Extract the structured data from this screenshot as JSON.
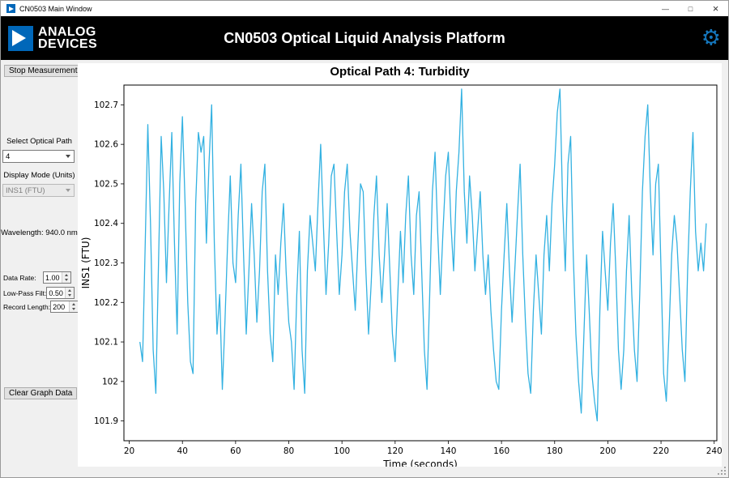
{
  "window": {
    "title": "CN0503 Main Window",
    "controls": {
      "minimize": "—",
      "maximize": "□",
      "close": "×"
    }
  },
  "icons": {
    "settings_gear": "⚙"
  },
  "header": {
    "brand_line1": "ANALOG",
    "brand_line2": "DEVICES",
    "title": "CN0503 Optical Liquid Analysis Platform"
  },
  "sidebar": {
    "stop_button": "Stop Measurement",
    "optical_path_label": "Select Optical Path",
    "optical_path_value": "4",
    "display_mode_label": "Display Mode (Units)",
    "display_mode_value": "INS1 (FTU)",
    "wavelength": "Wavelength: 940.0 nm",
    "fields": [
      {
        "label": "Data Rate:",
        "value": "1.00"
      },
      {
        "label": "Low-Pass Filt:",
        "value": "0.50"
      },
      {
        "label": "Record Length:",
        "value": "200"
      }
    ],
    "clear_button": "Clear Graph Data"
  },
  "chart_data": {
    "type": "line",
    "title": "Optical Path 4: Turbidity",
    "xlabel": "Time (seconds)",
    "ylabel": "INS1 (FTU)",
    "xlim": [
      18,
      241
    ],
    "ylim": [
      101.85,
      102.75
    ],
    "x_ticks": [
      20,
      40,
      60,
      80,
      100,
      120,
      140,
      160,
      180,
      200,
      220,
      240
    ],
    "x_tick_labels": [
      "20",
      "40",
      "60",
      "80",
      "100",
      "120",
      "140",
      "160",
      "180",
      "200",
      "220",
      "240"
    ],
    "y_ticks": [
      101.9,
      102.0,
      102.1,
      102.2,
      102.3,
      102.4,
      102.5,
      102.6,
      102.7
    ],
    "y_tick_labels": [
      "101.9",
      "102",
      "102.1",
      "102.2",
      "102.3",
      "102.4",
      "102.5",
      "102.6",
      "102.7"
    ],
    "line_color": "#33b1e1",
    "grid": false,
    "x_start": 24,
    "x_step": 1,
    "values": [
      102.1,
      102.05,
      102.35,
      102.65,
      102.4,
      102.08,
      101.97,
      102.3,
      102.62,
      102.48,
      102.25,
      102.45,
      102.63,
      102.35,
      102.12,
      102.5,
      102.67,
      102.45,
      102.2,
      102.05,
      102.02,
      102.45,
      102.63,
      102.58,
      102.62,
      102.35,
      102.55,
      102.7,
      102.35,
      102.12,
      102.22,
      101.98,
      102.15,
      102.35,
      102.52,
      102.3,
      102.25,
      102.42,
      102.55,
      102.32,
      102.12,
      102.28,
      102.45,
      102.32,
      102.15,
      102.28,
      102.48,
      102.55,
      102.28,
      102.12,
      102.05,
      102.32,
      102.22,
      102.35,
      102.45,
      102.28,
      102.15,
      102.1,
      101.98,
      102.22,
      102.38,
      102.08,
      101.97,
      102.28,
      102.42,
      102.35,
      102.28,
      102.45,
      102.6,
      102.4,
      102.22,
      102.35,
      102.52,
      102.55,
      102.38,
      102.22,
      102.32,
      102.48,
      102.55,
      102.38,
      102.28,
      102.18,
      102.35,
      102.5,
      102.48,
      102.28,
      102.12,
      102.25,
      102.42,
      102.52,
      102.32,
      102.2,
      102.32,
      102.45,
      102.28,
      102.12,
      102.05,
      102.22,
      102.38,
      102.25,
      102.42,
      102.52,
      102.32,
      102.22,
      102.42,
      102.48,
      102.28,
      102.08,
      101.98,
      102.22,
      102.48,
      102.58,
      102.38,
      102.22,
      102.38,
      102.52,
      102.58,
      102.4,
      102.28,
      102.48,
      102.58,
      102.74,
      102.48,
      102.35,
      102.52,
      102.42,
      102.28,
      102.38,
      102.48,
      102.32,
      102.22,
      102.32,
      102.18,
      102.08,
      102.0,
      101.98,
      102.18,
      102.32,
      102.45,
      102.28,
      102.15,
      102.28,
      102.42,
      102.55,
      102.32,
      102.15,
      102.02,
      101.97,
      102.18,
      102.32,
      102.22,
      102.12,
      102.32,
      102.42,
      102.28,
      102.45,
      102.55,
      102.68,
      102.74,
      102.45,
      102.28,
      102.55,
      102.62,
      102.32,
      102.12,
      102.0,
      101.92,
      102.12,
      102.32,
      102.18,
      102.02,
      101.95,
      101.9,
      102.18,
      102.38,
      102.28,
      102.18,
      102.35,
      102.45,
      102.28,
      102.08,
      101.98,
      102.08,
      102.28,
      102.42,
      102.22,
      102.08,
      102.0,
      102.22,
      102.48,
      102.62,
      102.7,
      102.48,
      102.32,
      102.5,
      102.55,
      102.28,
      102.02,
      101.95,
      102.12,
      102.32,
      102.42,
      102.35,
      102.22,
      102.08,
      102.0,
      102.28,
      102.48,
      102.63,
      102.38,
      102.28,
      102.35,
      102.28,
      102.4
    ]
  }
}
